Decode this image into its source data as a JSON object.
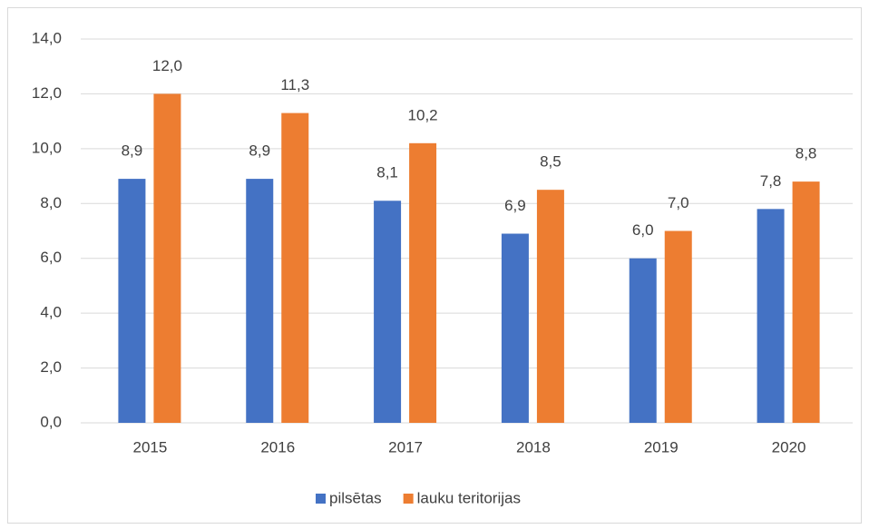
{
  "chart_data": {
    "type": "bar",
    "categories": [
      "2015",
      "2016",
      "2017",
      "2018",
      "2019",
      "2020"
    ],
    "series": [
      {
        "name": "pilsētas",
        "color": "#4472c4",
        "values": [
          8.9,
          8.9,
          8.1,
          6.9,
          6.0,
          7.8
        ],
        "value_labels": [
          "8,9",
          "8,9",
          "8,1",
          "6,9",
          "6,0",
          "7,8"
        ]
      },
      {
        "name": "lauku teritorijas",
        "color": "#ed7d31",
        "values": [
          12.0,
          11.3,
          10.2,
          8.5,
          7.0,
          8.8
        ],
        "value_labels": [
          "12,0",
          "11,3",
          "10,2",
          "8,5",
          "7,0",
          "8,8"
        ]
      }
    ],
    "ylim": [
      0,
      14
    ],
    "yticks": [
      {
        "value": 0,
        "label": "0,0"
      },
      {
        "value": 2,
        "label": "2,0"
      },
      {
        "value": 4,
        "label": "4,0"
      },
      {
        "value": 6,
        "label": "6,0"
      },
      {
        "value": 8,
        "label": "8,0"
      },
      {
        "value": 10,
        "label": "10,0"
      },
      {
        "value": 12,
        "label": "12,0"
      },
      {
        "value": 14,
        "label": "14,0"
      }
    ],
    "grid": true,
    "legend": "bottom"
  }
}
